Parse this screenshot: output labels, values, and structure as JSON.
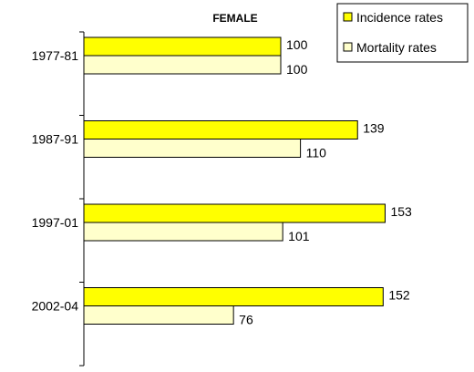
{
  "chart_data": {
    "type": "bar",
    "orientation": "horizontal",
    "title": "FEMALE",
    "categories": [
      "1977-81",
      "1987-91",
      "1997-01",
      "2002-04"
    ],
    "series": [
      {
        "name": "Incidence rates",
        "values": [
          100,
          139,
          153,
          152
        ],
        "color": "#FFFF00"
      },
      {
        "name": "Mortality rates",
        "values": [
          100,
          110,
          101,
          76
        ],
        "color": "#FFFFCC"
      }
    ],
    "xlim": [
      0,
      160
    ],
    "legend_position": "top-right",
    "grid": false
  }
}
